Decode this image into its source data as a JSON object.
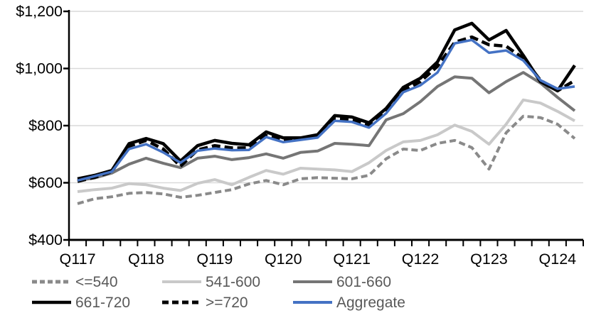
{
  "chart_data": {
    "type": "line",
    "title": "",
    "xlabel": "",
    "ylabel": "",
    "categories": [
      "Q117",
      "Q217",
      "Q317",
      "Q417",
      "Q118",
      "Q218",
      "Q318",
      "Q418",
      "Q119",
      "Q219",
      "Q319",
      "Q419",
      "Q120",
      "Q220",
      "Q320",
      "Q420",
      "Q121",
      "Q221",
      "Q321",
      "Q421",
      "Q122",
      "Q222",
      "Q322",
      "Q422",
      "Q123",
      "Q223",
      "Q323",
      "Q423",
      "Q124",
      "Q224"
    ],
    "x_axis": {
      "year_tick_labels": [
        "Q117",
        "Q118",
        "Q119",
        "Q120",
        "Q121",
        "Q122",
        "Q123",
        "Q124"
      ],
      "minor_ticks_per_quarter": true
    },
    "y_axis": {
      "min": 400,
      "max": 1200,
      "tick_interval": 200,
      "tick_values": [
        400,
        600,
        800,
        1000,
        1200
      ],
      "tick_labels": [
        "$400",
        "$600",
        "$800",
        "$1,000",
        "$1,200"
      ]
    },
    "grid": "horizontal",
    "gridline_color": "#d9d9d9",
    "axis_color": "#000000",
    "axis_label_color": "#000000",
    "legend_position": "bottom",
    "legend_text_color": "#595959",
    "series": [
      {
        "name": "<=540",
        "color": "#8a8a8a",
        "style": "dashed",
        "values": [
          527,
          544,
          551,
          563,
          566,
          561,
          549,
          556,
          566,
          576,
          596,
          608,
          593,
          614,
          618,
          616,
          614,
          626,
          684,
          718,
          713,
          738,
          748,
          723,
          648,
          775,
          833,
          828,
          805,
          755
        ]
      },
      {
        "name": "541-600",
        "color": "#c9c9c9",
        "style": "solid",
        "values": [
          569,
          576,
          581,
          597,
          593,
          581,
          573,
          598,
          611,
          593,
          619,
          643,
          630,
          651,
          648,
          645,
          639,
          670,
          713,
          743,
          748,
          768,
          802,
          780,
          735,
          805,
          890,
          879,
          850,
          817
        ]
      },
      {
        "name": "601-660",
        "color": "#757575",
        "style": "solid",
        "values": [
          608,
          617,
          634,
          665,
          686,
          668,
          653,
          686,
          693,
          681,
          688,
          701,
          686,
          706,
          711,
          738,
          735,
          730,
          820,
          842,
          884,
          937,
          971,
          966,
          915,
          954,
          986,
          949,
          899,
          852
        ]
      },
      {
        "name": "661-720",
        "color": "#000000",
        "style": "solid",
        "values": [
          614,
          626,
          643,
          737,
          755,
          737,
          676,
          730,
          748,
          738,
          733,
          778,
          757,
          757,
          768,
          835,
          830,
          810,
          860,
          934,
          966,
          1023,
          1135,
          1158,
          1100,
          1133,
          1046,
          954,
          922,
          1011
        ]
      },
      {
        "name": ">=720",
        "color": "#000000",
        "style": "dashed",
        "values": [
          605,
          619,
          639,
          728,
          748,
          718,
          658,
          715,
          730,
          722,
          722,
          765,
          748,
          752,
          763,
          825,
          820,
          803,
          850,
          922,
          954,
          1008,
          1092,
          1110,
          1083,
          1078,
          1036,
          959,
          922,
          958
        ]
      },
      {
        "name": "Aggregate",
        "color": "#4472c4",
        "style": "solid",
        "values": [
          608,
          623,
          639,
          718,
          735,
          706,
          670,
          712,
          720,
          714,
          715,
          760,
          742,
          750,
          758,
          817,
          813,
          793,
          843,
          917,
          941,
          986,
          1088,
          1100,
          1055,
          1063,
          1028,
          959,
          929,
          937
        ]
      }
    ]
  }
}
